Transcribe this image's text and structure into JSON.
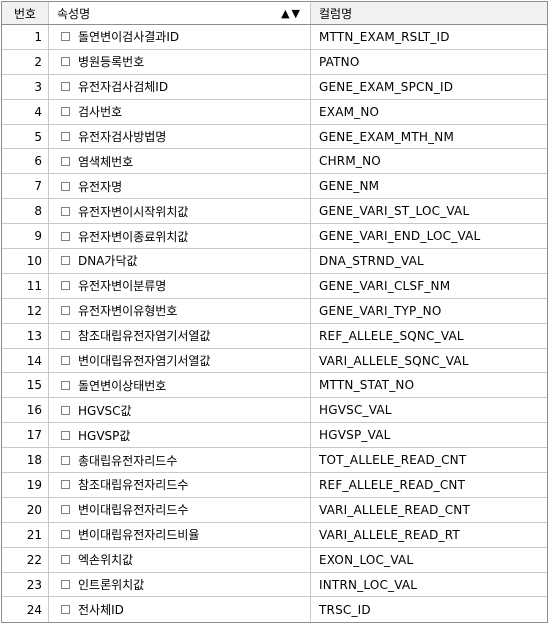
{
  "header": {
    "num": "번호",
    "attr": "속성명",
    "sort_up": "▲",
    "sort_down": "▼",
    "col": "컬럼명"
  },
  "rows": [
    {
      "num": "1",
      "attr": "돌연변이검사결과ID",
      "col": "MTTN_EXAM_RSLT_ID"
    },
    {
      "num": "2",
      "attr": "병원등록번호",
      "col": "PATNO"
    },
    {
      "num": "3",
      "attr": "유전자검사검체ID",
      "col": "GENE_EXAM_SPCN_ID"
    },
    {
      "num": "4",
      "attr": "검사번호",
      "col": "EXAM_NO"
    },
    {
      "num": "5",
      "attr": "유전자검사방법명",
      "col": "GENE_EXAM_MTH_NM"
    },
    {
      "num": "6",
      "attr": "염색체번호",
      "col": "CHRM_NO"
    },
    {
      "num": "7",
      "attr": "유전자명",
      "col": "GENE_NM"
    },
    {
      "num": "8",
      "attr": "유전자변이시작위치값",
      "col": "GENE_VARI_ST_LOC_VAL"
    },
    {
      "num": "9",
      "attr": "유전자변이종료위치값",
      "col": "GENE_VARI_END_LOC_VAL"
    },
    {
      "num": "10",
      "attr": "DNA가닥값",
      "col": "DNA_STRND_VAL"
    },
    {
      "num": "11",
      "attr": "유전자변이분류명",
      "col": "GENE_VARI_CLSF_NM"
    },
    {
      "num": "12",
      "attr": "유전자변이유형번호",
      "col": "GENE_VARI_TYP_NO"
    },
    {
      "num": "13",
      "attr": "참조대립유전자염기서열값",
      "col": "REF_ALLELE_SQNC_VAL"
    },
    {
      "num": "14",
      "attr": "변이대립유전자염기서열값",
      "col": "VARI_ALLELE_SQNC_VAL"
    },
    {
      "num": "15",
      "attr": "돌연변이상태번호",
      "col": "MTTN_STAT_NO"
    },
    {
      "num": "16",
      "attr": "HGVSC값",
      "col": "HGVSC_VAL"
    },
    {
      "num": "17",
      "attr": "HGVSP값",
      "col": "HGVSP_VAL"
    },
    {
      "num": "18",
      "attr": "총대립유전자리드수",
      "col": "TOT_ALLELE_READ_CNT"
    },
    {
      "num": "19",
      "attr": "참조대립유전자리드수",
      "col": "REF_ALLELE_READ_CNT"
    },
    {
      "num": "20",
      "attr": "변이대립유전자리드수",
      "col": "VARI_ALLELE_READ_CNT"
    },
    {
      "num": "21",
      "attr": "변이대립유전자리드비율",
      "col": "VARI_ALLELE_READ_RT"
    },
    {
      "num": "22",
      "attr": "엑손위치값",
      "col": "EXON_LOC_VAL"
    },
    {
      "num": "23",
      "attr": "인트론위치값",
      "col": "INTRN_LOC_VAL"
    },
    {
      "num": "24",
      "attr": "전사체ID",
      "col": "TRSC_ID"
    }
  ]
}
